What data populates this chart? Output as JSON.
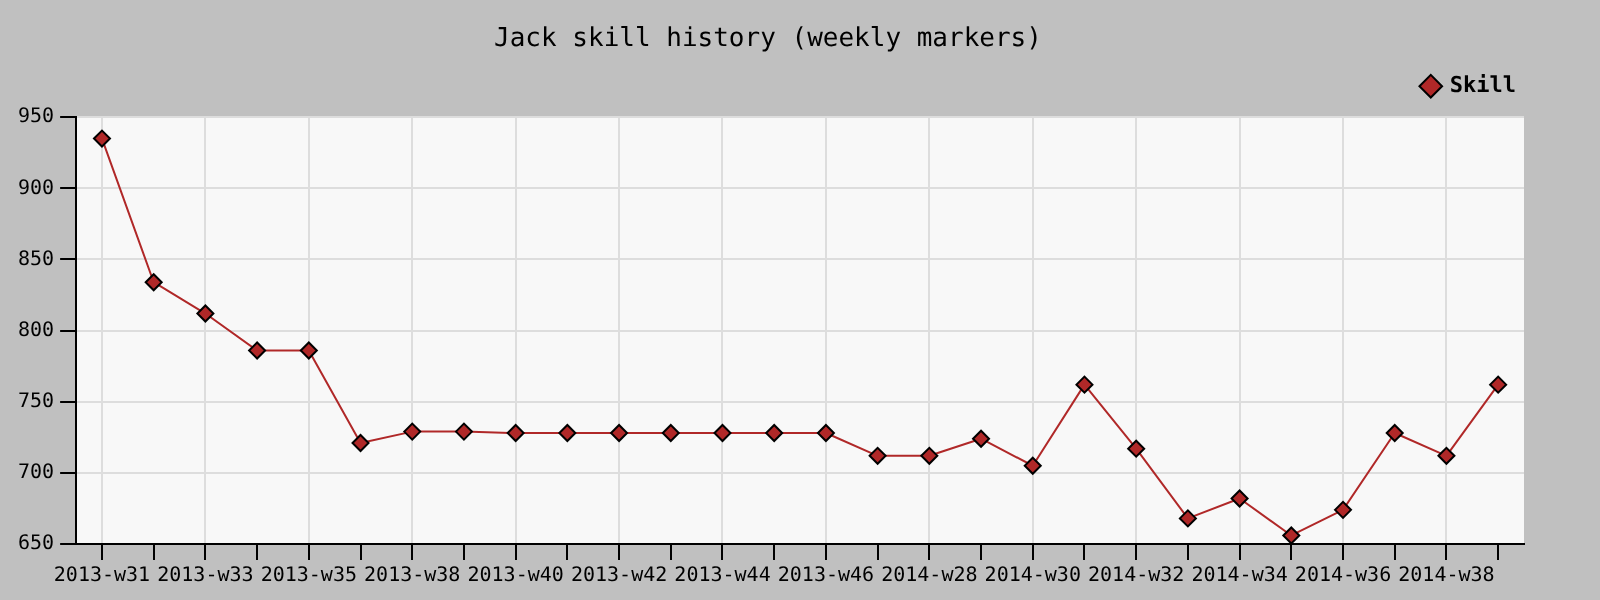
{
  "chart_data": {
    "type": "line",
    "title": "Jack skill history (weekly markers)",
    "categories": [
      "2013-w31",
      null,
      "2013-w33",
      null,
      "2013-w35",
      null,
      "2013-w38",
      null,
      "2013-w40",
      null,
      "2013-w42",
      null,
      "2013-w44",
      null,
      "2013-w46",
      null,
      "2014-w28",
      null,
      "2014-w30",
      null,
      "2014-w32",
      null,
      "2014-w34",
      null,
      "2014-w36",
      null,
      "2014-w38",
      null
    ],
    "series": [
      {
        "name": "Skill",
        "color": "#b02828",
        "values": [
          935,
          834,
          812,
          786,
          786,
          721,
          729,
          729,
          728,
          728,
          728,
          728,
          728,
          728,
          728,
          712,
          712,
          724,
          705,
          762,
          717,
          668,
          682,
          656,
          674,
          728,
          712,
          762
        ]
      }
    ],
    "ylim": [
      650,
      950
    ],
    "yticks": [
      650,
      700,
      750,
      800,
      850,
      900,
      950
    ],
    "grid": true,
    "legend": "top right",
    "marker": "diamond",
    "line_style": "solid"
  }
}
